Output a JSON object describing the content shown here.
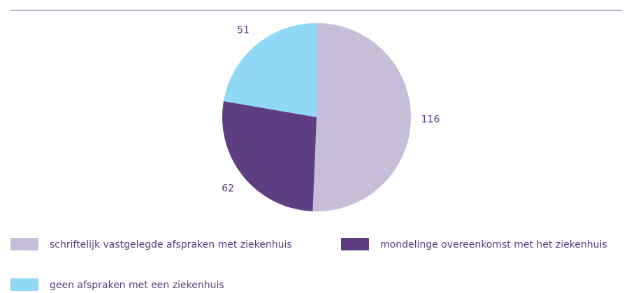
{
  "chart_data": {
    "type": "pie",
    "categories": [
      "schriftelijk vastgelegde afspraken met ziekenhuis",
      "mondelinge overeenkomst met het ziekenhuis",
      "geen afspraken met een ziekenhuis"
    ],
    "values": [
      116,
      62,
      51
    ],
    "colors": [
      "#c6bdd8",
      "#5f3d82",
      "#8fd8f6"
    ]
  }
}
